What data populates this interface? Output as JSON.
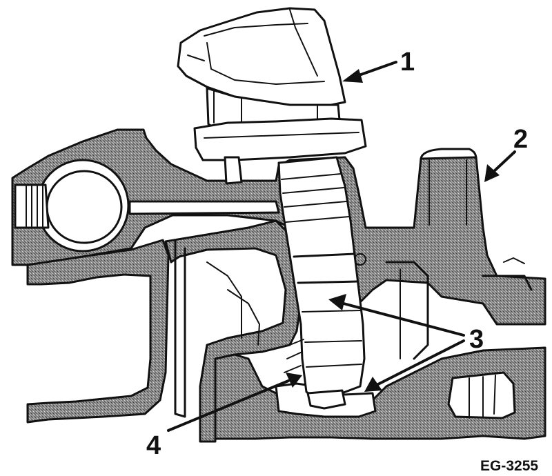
{
  "figure": {
    "code": "EG-3255"
  },
  "callouts": [
    {
      "id": "1",
      "text": "1"
    },
    {
      "id": "2",
      "text": "2"
    },
    {
      "id": "3",
      "text": "3"
    },
    {
      "id": "4",
      "text": "4"
    }
  ]
}
